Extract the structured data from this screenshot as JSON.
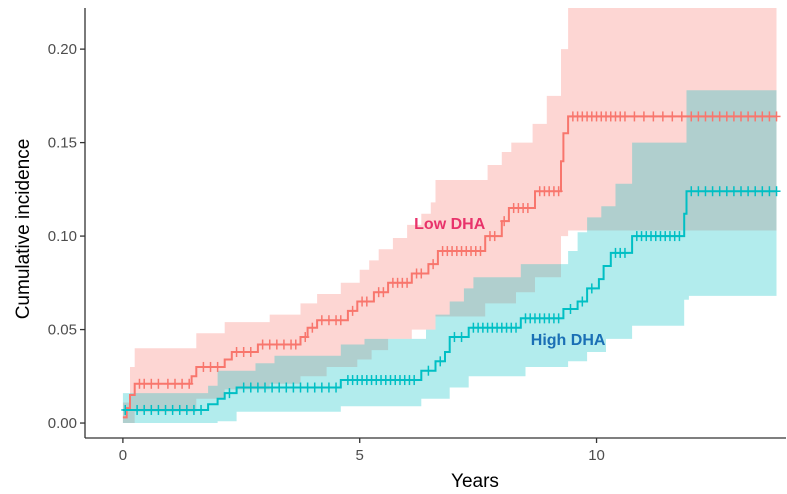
{
  "chart_data": {
    "type": "line",
    "subtype": "step-with-confidence-bands",
    "title": "",
    "xlabel": "Years",
    "ylabel": "Cumulative incidence",
    "xlim": [
      -0.8,
      14
    ],
    "ylim": [
      -0.008,
      0.222
    ],
    "x_ticks": [
      0,
      5,
      10
    ],
    "x_tick_labels": [
      "0",
      "5",
      "10"
    ],
    "y_ticks": [
      0.0,
      0.05,
      0.1,
      0.15,
      0.2
    ],
    "y_tick_labels": [
      "0.00",
      "0.05",
      "0.10",
      "0.15",
      "0.20"
    ],
    "grid": false,
    "series": [
      {
        "name": "Low DHA",
        "color": "#f8766d",
        "band_color": "#f8766d",
        "label_color": "#e8336b",
        "annotation": "Low DHA",
        "annotation_at": [
          6.9,
          0.107
        ],
        "x_end": 13.8,
        "steps": [
          [
            0,
            0.003
          ],
          [
            0.08,
            0.008
          ],
          [
            0.15,
            0.015
          ],
          [
            0.25,
            0.021
          ],
          [
            1.45,
            0.025
          ],
          [
            1.55,
            0.03
          ],
          [
            2.15,
            0.034
          ],
          [
            2.3,
            0.038
          ],
          [
            2.85,
            0.042
          ],
          [
            3.75,
            0.046
          ],
          [
            3.9,
            0.051
          ],
          [
            4.1,
            0.055
          ],
          [
            4.75,
            0.06
          ],
          [
            4.95,
            0.065
          ],
          [
            5.3,
            0.07
          ],
          [
            5.6,
            0.075
          ],
          [
            6.1,
            0.08
          ],
          [
            6.45,
            0.085
          ],
          [
            6.65,
            0.092
          ],
          [
            7.65,
            0.1
          ],
          [
            8.0,
            0.108
          ],
          [
            8.15,
            0.115
          ],
          [
            8.7,
            0.124
          ],
          [
            9.25,
            0.14
          ],
          [
            9.3,
            0.155
          ],
          [
            9.4,
            0.164
          ]
        ],
        "ci_upper": [
          [
            0,
            0.011
          ],
          [
            0.15,
            0.03
          ],
          [
            0.25,
            0.04
          ],
          [
            1.55,
            0.048
          ],
          [
            2.15,
            0.054
          ],
          [
            3.1,
            0.058
          ],
          [
            3.75,
            0.064
          ],
          [
            4.1,
            0.069
          ],
          [
            4.6,
            0.075
          ],
          [
            5.0,
            0.082
          ],
          [
            5.2,
            0.087
          ],
          [
            5.4,
            0.093
          ],
          [
            5.7,
            0.099
          ],
          [
            6.0,
            0.106
          ],
          [
            6.3,
            0.112
          ],
          [
            6.5,
            0.118
          ],
          [
            6.6,
            0.13
          ],
          [
            7.7,
            0.138
          ],
          [
            8.0,
            0.145
          ],
          [
            8.2,
            0.15
          ],
          [
            8.65,
            0.16
          ],
          [
            8.95,
            0.175
          ],
          [
            9.25,
            0.2
          ],
          [
            9.4,
            0.222
          ]
        ],
        "ci_lower": [
          [
            0,
            0.0
          ],
          [
            0.25,
            0.006
          ],
          [
            1.55,
            0.013
          ],
          [
            2.15,
            0.018
          ],
          [
            3.1,
            0.021
          ],
          [
            3.75,
            0.025
          ],
          [
            4.3,
            0.03
          ],
          [
            4.95,
            0.034
          ],
          [
            5.25,
            0.039
          ],
          [
            5.6,
            0.045
          ],
          [
            6.1,
            0.05
          ],
          [
            6.6,
            0.057
          ],
          [
            7.65,
            0.064
          ],
          [
            8.3,
            0.07
          ],
          [
            8.7,
            0.078
          ],
          [
            9.25,
            0.1
          ],
          [
            9.4,
            0.103
          ]
        ],
        "censor_x": [
          0.35,
          0.45,
          0.6,
          0.75,
          0.95,
          1.1,
          1.25,
          1.4,
          1.7,
          1.85,
          2.0,
          2.4,
          2.55,
          2.7,
          2.95,
          3.1,
          3.25,
          3.4,
          3.55,
          3.65,
          3.85,
          4.0,
          4.2,
          4.35,
          4.5,
          4.6,
          4.85,
          5.05,
          5.15,
          5.4,
          5.5,
          5.7,
          5.8,
          5.9,
          6.0,
          6.2,
          6.3,
          6.55,
          6.75,
          6.85,
          6.95,
          7.05,
          7.15,
          7.25,
          7.35,
          7.45,
          7.55,
          7.75,
          7.85,
          8.05,
          8.25,
          8.35,
          8.45,
          8.55,
          8.8,
          8.9,
          9.0,
          9.1,
          9.2,
          9.5,
          9.6,
          9.7,
          9.8,
          9.9,
          10.0,
          10.1,
          10.2,
          10.3,
          10.4,
          10.5,
          10.6,
          10.8,
          11.0,
          11.2,
          11.4,
          11.6,
          11.8,
          12.0,
          12.15,
          12.3,
          12.45,
          12.6,
          12.75,
          12.9,
          13.05,
          13.2,
          13.35,
          13.5,
          13.65,
          13.8
        ]
      },
      {
        "name": "High DHA",
        "color": "#00bfc4",
        "band_color": "#00bfc4",
        "label_color": "#1a6fb5",
        "annotation": "High DHA",
        "annotation_at": [
          9.4,
          0.045
        ],
        "x_end": 13.8,
        "steps": [
          [
            0,
            0.007
          ],
          [
            1.8,
            0.01
          ],
          [
            2.0,
            0.013
          ],
          [
            2.15,
            0.016
          ],
          [
            2.4,
            0.019
          ],
          [
            4.6,
            0.023
          ],
          [
            6.3,
            0.028
          ],
          [
            6.6,
            0.033
          ],
          [
            6.8,
            0.038
          ],
          [
            6.9,
            0.046
          ],
          [
            7.3,
            0.051
          ],
          [
            8.4,
            0.056
          ],
          [
            9.3,
            0.061
          ],
          [
            9.6,
            0.065
          ],
          [
            9.8,
            0.072
          ],
          [
            10.05,
            0.077
          ],
          [
            10.15,
            0.084
          ],
          [
            10.3,
            0.091
          ],
          [
            10.75,
            0.1
          ],
          [
            11.85,
            0.112
          ],
          [
            11.9,
            0.124
          ]
        ],
        "ci_upper": [
          [
            0,
            0.016
          ],
          [
            1.8,
            0.02
          ],
          [
            2.0,
            0.028
          ],
          [
            2.8,
            0.032
          ],
          [
            3.2,
            0.036
          ],
          [
            4.6,
            0.042
          ],
          [
            5.1,
            0.045
          ],
          [
            6.4,
            0.05
          ],
          [
            6.6,
            0.058
          ],
          [
            6.9,
            0.065
          ],
          [
            7.2,
            0.072
          ],
          [
            7.4,
            0.078
          ],
          [
            8.4,
            0.085
          ],
          [
            9.4,
            0.092
          ],
          [
            9.6,
            0.102
          ],
          [
            9.8,
            0.11
          ],
          [
            10.1,
            0.116
          ],
          [
            10.4,
            0.128
          ],
          [
            10.75,
            0.15
          ],
          [
            11.9,
            0.178
          ]
        ],
        "ci_lower": [
          [
            0,
            0.0
          ],
          [
            2.0,
            0.001
          ],
          [
            2.4,
            0.006
          ],
          [
            4.6,
            0.009
          ],
          [
            6.3,
            0.013
          ],
          [
            6.9,
            0.019
          ],
          [
            7.3,
            0.025
          ],
          [
            8.5,
            0.03
          ],
          [
            9.4,
            0.033
          ],
          [
            9.8,
            0.038
          ],
          [
            10.2,
            0.045
          ],
          [
            10.75,
            0.052
          ],
          [
            11.85,
            0.066
          ],
          [
            11.95,
            0.068
          ]
        ],
        "censor_x": [
          0.05,
          0.3,
          0.45,
          0.6,
          0.75,
          0.9,
          1.05,
          1.2,
          1.35,
          1.5,
          1.65,
          2.25,
          2.55,
          2.7,
          2.85,
          3.0,
          3.15,
          3.3,
          3.45,
          3.6,
          3.75,
          3.9,
          4.05,
          4.2,
          4.35,
          4.5,
          4.75,
          4.85,
          4.95,
          5.05,
          5.15,
          5.25,
          5.35,
          5.45,
          5.55,
          5.65,
          5.75,
          5.85,
          5.95,
          6.05,
          6.15,
          6.45,
          6.7,
          7.0,
          7.15,
          7.4,
          7.5,
          7.6,
          7.7,
          7.8,
          7.9,
          8.0,
          8.1,
          8.2,
          8.3,
          8.5,
          8.6,
          8.7,
          8.8,
          8.9,
          9.0,
          9.1,
          9.2,
          9.45,
          9.7,
          9.9,
          10.4,
          10.5,
          10.6,
          10.85,
          10.95,
          11.05,
          11.15,
          11.25,
          11.35,
          11.45,
          11.55,
          11.65,
          11.75,
          12.0,
          12.15,
          12.3,
          12.45,
          12.6,
          12.75,
          12.9,
          13.05,
          13.2,
          13.35,
          13.5,
          13.65,
          13.8
        ]
      }
    ]
  }
}
